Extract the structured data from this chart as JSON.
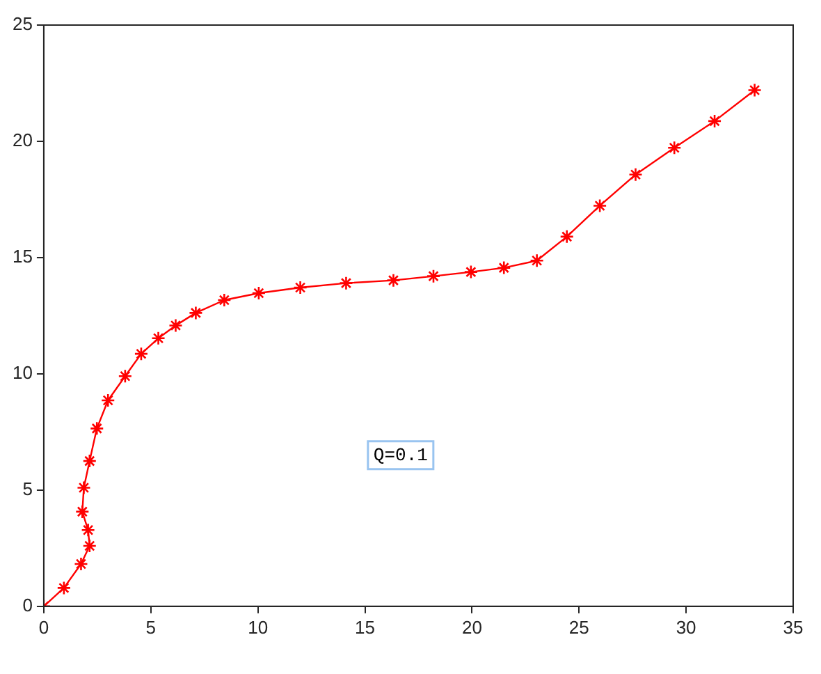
{
  "chart_data": {
    "type": "line",
    "x": [
      0,
      0.94,
      1.74,
      2.14,
      2.07,
      1.8,
      1.87,
      2.14,
      2.48,
      3.0,
      3.8,
      4.55,
      5.35,
      6.16,
      7.1,
      8.43,
      10.04,
      11.98,
      14.12,
      16.33,
      18.2,
      19.95,
      21.49,
      23.03,
      24.43,
      25.97,
      27.64,
      29.45,
      31.33,
      33.2
    ],
    "series": [
      {
        "color": "#ff0000",
        "values": [
          0,
          0.79,
          1.82,
          2.6,
          3.28,
          4.07,
          5.1,
          6.25,
          7.65,
          8.86,
          9.9,
          10.86,
          11.53,
          12.08,
          12.62,
          13.17,
          13.47,
          13.71,
          13.9,
          14.02,
          14.2,
          14.38,
          14.56,
          14.87,
          15.9,
          17.23,
          18.57,
          19.72,
          20.87,
          22.2
        ]
      }
    ],
    "xlim": [
      0,
      35
    ],
    "xticks": [
      0,
      5,
      10,
      15,
      20,
      25,
      30,
      35
    ],
    "ylim": [
      0,
      25
    ],
    "yticks": [
      0,
      5,
      10,
      15,
      20,
      25
    ],
    "grid": false,
    "legend": false,
    "marker": "cross",
    "line_style": "solid",
    "annotations": [
      "Q=0.1"
    ]
  }
}
